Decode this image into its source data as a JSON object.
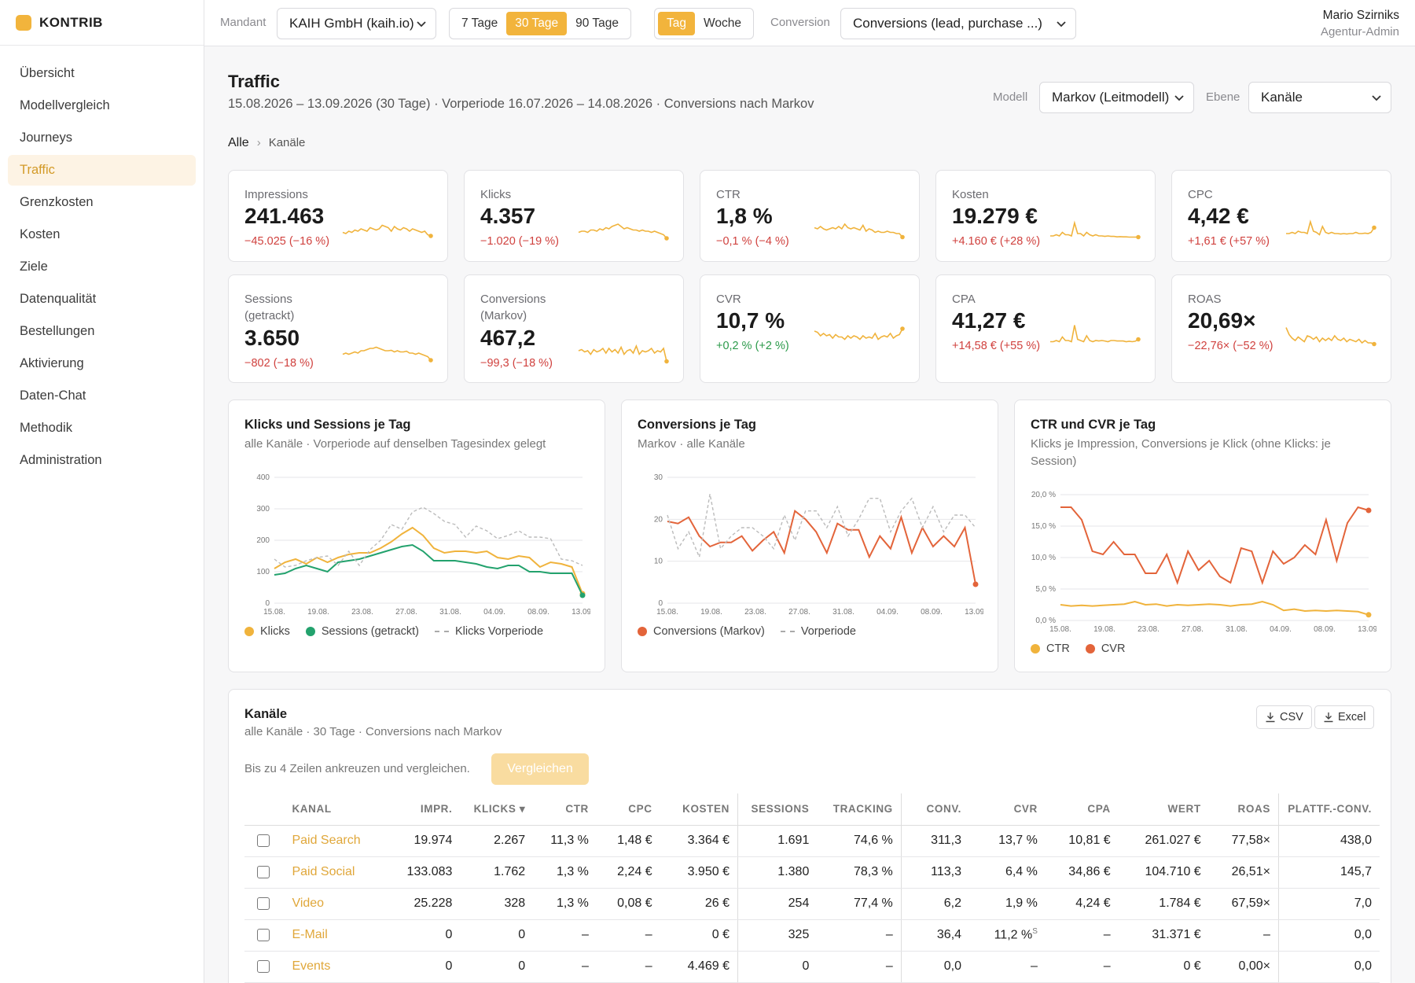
{
  "app": {
    "brand": "KONTRIB"
  },
  "sidebar": {
    "items": [
      {
        "label": "Übersicht",
        "active": false
      },
      {
        "label": "Modellvergleich",
        "active": false
      },
      {
        "label": "Journeys",
        "active": false
      },
      {
        "label": "Traffic",
        "active": true
      },
      {
        "label": "Grenzkosten",
        "active": false
      },
      {
        "label": "Kosten",
        "active": false
      },
      {
        "label": "Ziele",
        "active": false
      },
      {
        "label": "Datenqualität",
        "active": false
      },
      {
        "label": "Bestellungen",
        "active": false
      },
      {
        "label": "Aktivierung",
        "active": false
      },
      {
        "label": "Daten-Chat",
        "active": false
      },
      {
        "label": "Methodik",
        "active": false
      },
      {
        "label": "Administration",
        "active": false
      }
    ]
  },
  "topbar": {
    "mandant_label": "Mandant",
    "mandant_value": "KAIH GmbH (kaih.io)",
    "range_options": [
      "7 Tage",
      "30 Tage",
      "90 Tage"
    ],
    "range_active": "30 Tage",
    "gran_options": [
      "Tag",
      "Woche"
    ],
    "gran_active": "Tag",
    "conversion_label": "Conversion",
    "conversion_value": "Conversions (lead, purchase ...)",
    "user_name": "Mario Szirniks",
    "user_role": "Agentur-Admin"
  },
  "page": {
    "title": "Traffic",
    "subtitle": "15.08.2026 – 13.09.2026 (30 Tage) · Vorperiode 16.07.2026 – 14.08.2026 · Conversions nach Markov",
    "modell_label": "Modell",
    "modell_value": "Markov (Leitmodell)",
    "ebene_label": "Ebene",
    "ebene_value": "Kanäle",
    "breadcrumb": [
      "Alle",
      "Kanäle"
    ]
  },
  "kpis": [
    {
      "label": "Impressions",
      "value": "241.463",
      "delta": "−45.025 (−16 %)",
      "trend": "neg",
      "spark": [
        0.45,
        0.4,
        0.5,
        0.45,
        0.55,
        0.5,
        0.6,
        0.55,
        0.5,
        0.65,
        0.6,
        0.55,
        0.6,
        0.75,
        0.7,
        0.65,
        0.5,
        0.7,
        0.6,
        0.55,
        0.65,
        0.6,
        0.5,
        0.6,
        0.55,
        0.5,
        0.45,
        0.5,
        0.35,
        0.3
      ]
    },
    {
      "label": "Klicks",
      "value": "4.357",
      "delta": "−1.020 (−19 %)",
      "trend": "neg",
      "spark": [
        0.45,
        0.5,
        0.5,
        0.45,
        0.55,
        0.55,
        0.5,
        0.6,
        0.55,
        0.65,
        0.6,
        0.7,
        0.75,
        0.8,
        0.7,
        0.6,
        0.65,
        0.6,
        0.55,
        0.55,
        0.5,
        0.55,
        0.5,
        0.5,
        0.45,
        0.5,
        0.45,
        0.4,
        0.35,
        0.2
      ]
    },
    {
      "label": "CTR",
      "value": "1,8 %",
      "delta": "−0,1 % (−4 %)",
      "trend": "neg",
      "spark": [
        0.65,
        0.6,
        0.7,
        0.6,
        0.55,
        0.6,
        0.65,
        0.6,
        0.7,
        0.6,
        0.8,
        0.65,
        0.6,
        0.65,
        0.6,
        0.55,
        0.75,
        0.5,
        0.6,
        0.55,
        0.45,
        0.5,
        0.45,
        0.45,
        0.5,
        0.45,
        0.45,
        0.4,
        0.4,
        0.25
      ]
    },
    {
      "label": "Kosten",
      "value": "19.279 €",
      "delta": "+4.160 € (+28 %)",
      "trend": "neg",
      "spark": [
        0.3,
        0.3,
        0.35,
        0.3,
        0.45,
        0.35,
        0.35,
        0.3,
        0.85,
        0.4,
        0.4,
        0.3,
        0.45,
        0.35,
        0.3,
        0.35,
        0.3,
        0.3,
        0.28,
        0.3,
        0.28,
        0.28,
        0.26,
        0.27,
        0.26,
        0.26,
        0.25,
        0.25,
        0.25,
        0.25
      ]
    },
    {
      "label": "CPC",
      "value": "4,42 €",
      "delta": "+1,61 € (+57 %)",
      "trend": "neg",
      "spark": [
        0.4,
        0.4,
        0.45,
        0.4,
        0.5,
        0.45,
        0.45,
        0.4,
        0.9,
        0.5,
        0.45,
        0.35,
        0.7,
        0.45,
        0.4,
        0.45,
        0.4,
        0.4,
        0.38,
        0.4,
        0.38,
        0.4,
        0.4,
        0.45,
        0.4,
        0.4,
        0.42,
        0.4,
        0.45,
        0.65
      ]
    },
    {
      "label": "Sessions (getrackt)",
      "value": "3.650",
      "delta": "−802 (−18 %)",
      "trend": "neg",
      "spark": [
        0.45,
        0.5,
        0.45,
        0.5,
        0.55,
        0.5,
        0.6,
        0.6,
        0.65,
        0.7,
        0.7,
        0.75,
        0.7,
        0.65,
        0.6,
        0.6,
        0.62,
        0.55,
        0.6,
        0.55,
        0.55,
        0.58,
        0.5,
        0.5,
        0.45,
        0.5,
        0.45,
        0.4,
        0.35,
        0.2
      ]
    },
    {
      "label": "Conversions (Markov)",
      "value": "467,2",
      "delta": "−99,3 (−18 %)",
      "trend": "neg",
      "spark": [
        0.6,
        0.65,
        0.55,
        0.6,
        0.45,
        0.65,
        0.55,
        0.6,
        0.7,
        0.5,
        0.7,
        0.55,
        0.65,
        0.5,
        0.75,
        0.45,
        0.6,
        0.65,
        0.5,
        0.8,
        0.45,
        0.6,
        0.55,
        0.6,
        0.7,
        0.5,
        0.6,
        0.55,
        0.7,
        0.15
      ]
    },
    {
      "label": "CVR",
      "value": "10,7 %",
      "delta": "+0,2 % (+2 %)",
      "trend": "pos",
      "spark": [
        0.7,
        0.65,
        0.5,
        0.6,
        0.5,
        0.55,
        0.4,
        0.55,
        0.45,
        0.45,
        0.35,
        0.5,
        0.4,
        0.5,
        0.45,
        0.35,
        0.5,
        0.4,
        0.45,
        0.4,
        0.6,
        0.35,
        0.45,
        0.5,
        0.45,
        0.6,
        0.4,
        0.5,
        0.55,
        0.8
      ]
    },
    {
      "label": "CPA",
      "value": "41,27 €",
      "delta": "+14,58 € (+55 %)",
      "trend": "neg",
      "spark": [
        0.25,
        0.25,
        0.3,
        0.25,
        0.45,
        0.3,
        0.3,
        0.25,
        0.95,
        0.35,
        0.3,
        0.25,
        0.5,
        0.3,
        0.25,
        0.3,
        0.28,
        0.3,
        0.28,
        0.25,
        0.3,
        0.3,
        0.28,
        0.28,
        0.28,
        0.25,
        0.27,
        0.25,
        0.27,
        0.35
      ]
    },
    {
      "label": "ROAS",
      "value": "20,69×",
      "delta": "−22,76× (−52 %)",
      "trend": "neg",
      "spark": [
        0.85,
        0.55,
        0.4,
        0.3,
        0.45,
        0.35,
        0.25,
        0.5,
        0.45,
        0.35,
        0.45,
        0.25,
        0.4,
        0.3,
        0.4,
        0.3,
        0.5,
        0.35,
        0.3,
        0.4,
        0.25,
        0.35,
        0.3,
        0.25,
        0.35,
        0.2,
        0.3,
        0.2,
        0.2,
        0.15
      ]
    }
  ],
  "charts": {
    "klicks": {
      "title": "Klicks und Sessions je Tag",
      "subtitle": "alle Kanäle · Vorperiode auf denselben Tagesindex gelegt"
    },
    "conv": {
      "title": "Conversions je Tag",
      "subtitle": "Markov · alle Kanäle"
    },
    "rates": {
      "title": "CTR und CVR je Tag",
      "subtitle": "Klicks je Impression, Conversions je Klick (ohne Klicks: je Session)"
    }
  },
  "chart_data": [
    {
      "type": "line",
      "yticks": [
        "400",
        "300",
        "200",
        "100",
        "0"
      ],
      "xticks": [
        "15.08.",
        "19.08.",
        "23.08.",
        "27.08.",
        "31.08.",
        "04.09.",
        "08.09.",
        "13.09."
      ],
      "ylim": [
        0,
        400
      ],
      "series": [
        {
          "name": "Klicks",
          "color": "#f0b33c",
          "values": [
            110,
            130,
            140,
            125,
            145,
            130,
            145,
            155,
            160,
            160,
            175,
            195,
            220,
            240,
            215,
            175,
            160,
            165,
            165,
            160,
            165,
            145,
            140,
            150,
            145,
            115,
            130,
            125,
            115,
            30
          ]
        },
        {
          "name": "Sessions (getrackt)",
          "color": "#23a26d",
          "values": [
            90,
            95,
            110,
            120,
            110,
            100,
            130,
            135,
            140,
            150,
            160,
            170,
            180,
            185,
            165,
            135,
            135,
            135,
            130,
            125,
            115,
            110,
            120,
            120,
            100,
            100,
            95,
            95,
            95,
            25
          ]
        },
        {
          "name": "Klicks Vorperiode",
          "color": "#bbbbbb",
          "dashed": true,
          "values": [
            140,
            115,
            120,
            135,
            145,
            150,
            120,
            165,
            120,
            170,
            200,
            250,
            235,
            290,
            305,
            285,
            260,
            250,
            210,
            245,
            230,
            205,
            215,
            230,
            210,
            210,
            205,
            140,
            135,
            120
          ]
        }
      ]
    },
    {
      "type": "line",
      "yticks": [
        "30",
        "20",
        "10",
        "0"
      ],
      "xticks": [
        "15.08.",
        "19.08.",
        "23.08.",
        "27.08.",
        "31.08.",
        "04.09.",
        "08.09.",
        "13.09."
      ],
      "ylim": [
        0,
        30
      ],
      "series": [
        {
          "name": "Conversions (Markov)",
          "color": "#e3643a",
          "values": [
            19.5,
            19,
            20.5,
            16,
            13.5,
            14.5,
            14.5,
            16,
            12.5,
            15,
            17,
            12,
            22,
            20,
            17,
            12,
            19,
            17.5,
            17.5,
            11,
            16,
            13,
            20.5,
            12,
            18,
            13.5,
            16,
            13.5,
            18,
            4.5
          ]
        },
        {
          "name": "Vorperiode",
          "color": "#bbbbbb",
          "dashed": true,
          "values": [
            21,
            13,
            17,
            11,
            26,
            13,
            16,
            18,
            18,
            16,
            13,
            21,
            15,
            22,
            22,
            18,
            23,
            16,
            20,
            25,
            25,
            17,
            22,
            25,
            18,
            23,
            17,
            21,
            21,
            18
          ]
        }
      ]
    },
    {
      "type": "line",
      "yticks": [
        "20,0 %",
        "15,0 %",
        "10,0 %",
        "5,0 %",
        "0,0 %"
      ],
      "xticks": [
        "15.08.",
        "19.08.",
        "23.08.",
        "27.08.",
        "31.08.",
        "04.09.",
        "08.09.",
        "13.09."
      ],
      "ylim": [
        0,
        20
      ],
      "series": [
        {
          "name": "CTR",
          "color": "#f0b33c",
          "values": [
            2.5,
            2.3,
            2.4,
            2.3,
            2.4,
            2.5,
            2.6,
            3,
            2.5,
            2.6,
            2.3,
            2.5,
            2.4,
            2.5,
            2.6,
            2.5,
            2.3,
            2.5,
            2.6,
            3,
            2.5,
            1.6,
            1.8,
            1.5,
            1.6,
            1.5,
            1.6,
            1.5,
            1.4,
            0.9
          ]
        },
        {
          "name": "CVR",
          "color": "#e3643a",
          "values": [
            18,
            18,
            16,
            11,
            10.5,
            12.5,
            10.5,
            10.5,
            7.5,
            7.5,
            10.5,
            6,
            11,
            8,
            9.5,
            7,
            6,
            11.5,
            11,
            6,
            11,
            9,
            10,
            12,
            10.5,
            16,
            9.5,
            15.5,
            18,
            17.5
          ]
        }
      ]
    }
  ],
  "table": {
    "title": "Kanäle",
    "subtitle": "alle Kanäle · 30 Tage · Conversions nach Markov",
    "csv_label": "CSV",
    "excel_label": "Excel",
    "hint": "Bis zu 4 Zeilen ankreuzen und vergleichen.",
    "compare_label": "Vergleichen",
    "columns": [
      "KANAL",
      "IMPR.",
      "KLICKS ▾",
      "CTR",
      "CPC",
      "KOSTEN",
      "SESSIONS",
      "TRACKING",
      "CONV.",
      "CVR",
      "CPA",
      "WERT",
      "ROAS",
      "PLATTF.-CONV."
    ],
    "rows": [
      {
        "kanal": "Paid Search",
        "impr": "19.974",
        "klicks": "2.267",
        "ctr": "11,3 %",
        "cpc": "1,48 €",
        "kosten": "3.364 €",
        "sessions": "1.691",
        "tracking": "74,6 %",
        "conv": "311,3",
        "cvr": "13,7 %",
        "cvr_note": "",
        "cpa": "10,81 €",
        "wert": "261.027 €",
        "roas": "77,58×",
        "plattf": "438,0"
      },
      {
        "kanal": "Paid Social",
        "impr": "133.083",
        "klicks": "1.762",
        "ctr": "1,3 %",
        "cpc": "2,24 €",
        "kosten": "3.950 €",
        "sessions": "1.380",
        "tracking": "78,3 %",
        "conv": "113,3",
        "cvr": "6,4 %",
        "cvr_note": "",
        "cpa": "34,86 €",
        "wert": "104.710 €",
        "roas": "26,51×",
        "plattf": "145,7"
      },
      {
        "kanal": "Video",
        "impr": "25.228",
        "klicks": "328",
        "ctr": "1,3 %",
        "cpc": "0,08 €",
        "kosten": "26 €",
        "sessions": "254",
        "tracking": "77,4 %",
        "conv": "6,2",
        "cvr": "1,9 %",
        "cvr_note": "",
        "cpa": "4,24 €",
        "wert": "1.784 €",
        "roas": "67,59×",
        "plattf": "7,0"
      },
      {
        "kanal": "E-Mail",
        "impr": "0",
        "klicks": "0",
        "ctr": "–",
        "cpc": "–",
        "kosten": "0 €",
        "sessions": "325",
        "tracking": "–",
        "conv": "36,4",
        "cvr": "11,2 %",
        "cvr_note": "S",
        "cpa": "–",
        "wert": "31.371 €",
        "roas": "–",
        "plattf": "0,0"
      },
      {
        "kanal": "Events",
        "impr": "0",
        "klicks": "0",
        "ctr": "–",
        "cpc": "–",
        "kosten": "4.469 €",
        "sessions": "0",
        "tracking": "–",
        "conv": "0,0",
        "cvr": "–",
        "cvr_note": "",
        "cpa": "–",
        "wert": "0 €",
        "roas": "0,00×",
        "plattf": "0,0"
      }
    ]
  }
}
